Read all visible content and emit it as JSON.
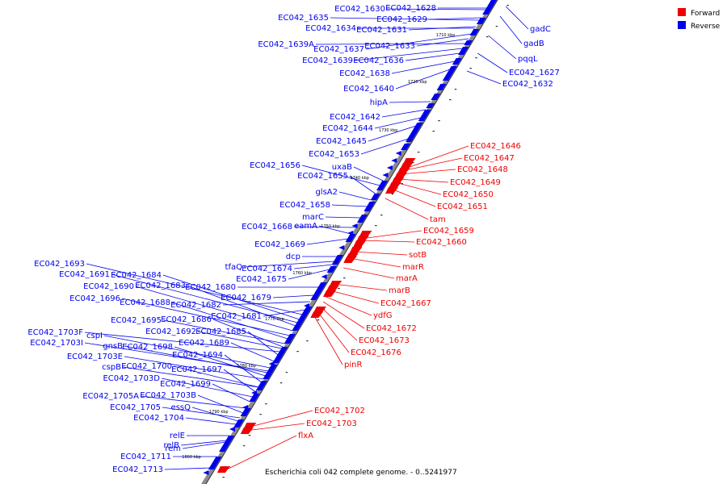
{
  "genome_caption": "Escherichia coli 042 complete genome. - 0..5241977",
  "legend": {
    "items": [
      {
        "label": "Forward",
        "color": "#ee0000"
      },
      {
        "label": "Reverse",
        "color": "#0000ee"
      }
    ]
  },
  "colors": {
    "forward": "#ee0000",
    "reverse": "#0000ee",
    "backbone": "#808080"
  },
  "ticks": [
    "1710 kbp",
    "1720 kbp",
    "1730 kbp",
    "1740 kbp",
    "1750 kbp",
    "1760 kbp",
    "1770 kbp",
    "1780 kbp",
    "1790 kbp",
    "1800 kbp"
  ],
  "reverse_genes": [
    "EC042_1630",
    "EC042_1628",
    "EC042_1635",
    "EC042_1629",
    "EC042_1634",
    "EC042_1631",
    "EC042_1639A",
    "EC042_1637",
    "EC042_1633",
    "EC042_1639",
    "EC042_1636",
    "EC042_1638",
    "EC042_1640",
    "hipA",
    "EC042_1642",
    "EC042_1644",
    "EC042_1645",
    "EC042_1653",
    "EC042_1656",
    "uxaB",
    "EC042_1655",
    "glsA2",
    "EC042_1658",
    "marC",
    "EC042_1668",
    "eamA",
    "EC042_1669",
    "dcp",
    "EC042_1693",
    "tfaQ",
    "EC042_1674",
    "EC042_1691",
    "EC042_1684",
    "EC042_1675",
    "EC042_1690",
    "EC042_1683",
    "EC042_1680",
    "EC042_1696",
    "EC042_1679",
    "EC042_1688",
    "EC042_1682",
    "EC042_1681",
    "EC042_1695",
    "EC042_1686",
    "EC042_1703F",
    "EC042_1692",
    "EC042_1685",
    "cspI",
    "EC042_1703I",
    "gnsB",
    "EC042_1698",
    "EC042_1689",
    "EC042_1703E",
    "EC042_1694",
    "cspB",
    "EC042_1700",
    "EC042_1697",
    "EC042_1703D",
    "EC042_1699",
    "EC042_1705A",
    "EC042_1703B",
    "EC042_1705",
    "essQ",
    "EC042_1704",
    "rem",
    "relE",
    "relB",
    "EC042_1711",
    "EC042_1713"
  ],
  "right_reverse_genes": [
    "gadC",
    "gadB",
    "pqqL",
    "EC042_1627",
    "EC042_1632"
  ],
  "forward_genes": [
    "EC042_1646",
    "EC042_1647",
    "EC042_1648",
    "EC042_1649",
    "EC042_1650",
    "EC042_1651",
    "tam",
    "EC042_1659",
    "EC042_1660",
    "sotB",
    "marR",
    "marA",
    "marB",
    "EC042_1667",
    "ydfG",
    "EC042_1672",
    "EC042_1673",
    "EC042_1676",
    "pinR",
    "EC042_1702",
    "EC042_1703",
    "flxA"
  ]
}
